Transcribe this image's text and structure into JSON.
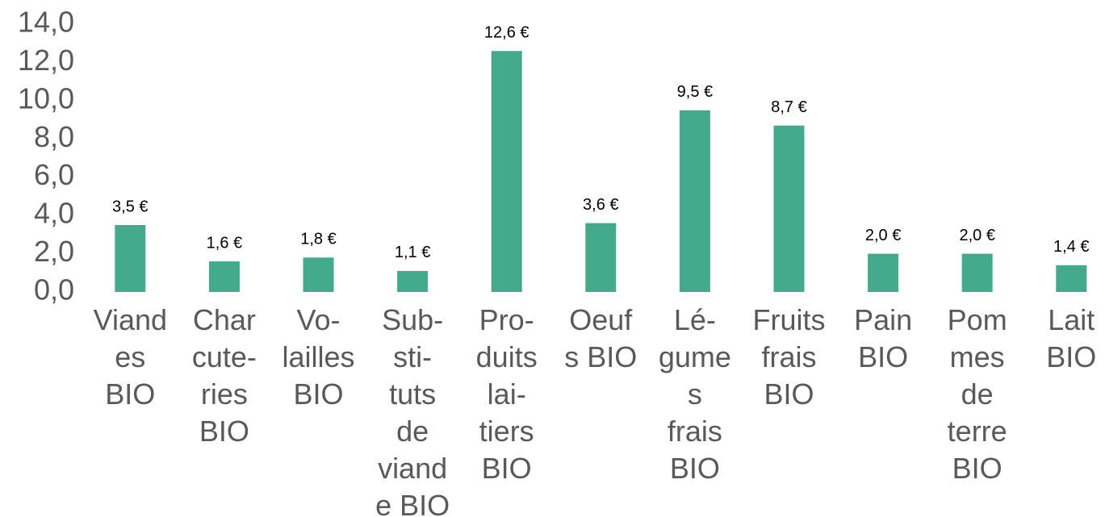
{
  "chart_data": {
    "type": "bar",
    "categories": [
      "Viand\nes\nBIO",
      "Char\ncute-\nries\nBIO",
      "Vo-\nlailles\nBIO",
      "Sub-\nsti-\ntuts\nde\nviand\ne BIO",
      "Pro-\nduits\nlai-\ntiers\nBIO",
      "Oeuf\ns BIO",
      "Lé-\ngume\ns\nfrais\nBIO",
      "Fruits\nfrais\nBIO",
      "Pain\nBIO",
      "Pom\nmes\nde\nterre\nBIO",
      "Lait\nBIO"
    ],
    "values": [
      3.5,
      1.6,
      1.8,
      1.1,
      12.6,
      3.6,
      9.5,
      8.7,
      2.0,
      2.0,
      1.4
    ],
    "value_labels": [
      "3,5 €",
      "1,6 €",
      "1,8 €",
      "1,1 €",
      "12,6 €",
      "3,6 €",
      "9,5 €",
      "8,7 €",
      "2,0 €",
      "2,0 €",
      "1,4 €"
    ],
    "color": "#44aa8c",
    "ylim": [
      0,
      14
    ],
    "yticks": [
      {
        "value": 0,
        "label": "0,0"
      },
      {
        "value": 2,
        "label": "2,0"
      },
      {
        "value": 4,
        "label": "4,0"
      },
      {
        "value": 6,
        "label": "6,0"
      },
      {
        "value": 8,
        "label": "8,0"
      },
      {
        "value": 10,
        "label": "10,0"
      },
      {
        "value": 12,
        "label": "12,0"
      },
      {
        "value": 14,
        "label": "14,0"
      }
    ],
    "grid": false
  }
}
